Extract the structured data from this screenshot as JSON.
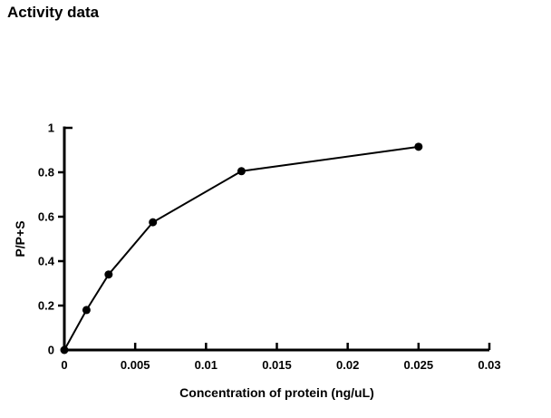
{
  "header": {
    "title": "Activity data"
  },
  "chart_data": {
    "type": "line",
    "title": "Activity data",
    "xlabel": "Concentration of protein (ng/uL)",
    "ylabel": "P/P+S",
    "x": [
      0,
      0.0015625,
      0.003125,
      0.00625,
      0.0125,
      0.025
    ],
    "y": [
      0,
      0.18,
      0.34,
      0.575,
      0.805,
      0.915
    ],
    "xlim": [
      0,
      0.03
    ],
    "ylim": [
      0,
      1
    ],
    "xticks": [
      0,
      0.005,
      0.01,
      0.015,
      0.02,
      0.025,
      0.03
    ],
    "xtick_labels": [
      "0",
      "0.005",
      "0.01",
      "0.015",
      "0.02",
      "0.025",
      "0.03"
    ],
    "yticks": [
      0,
      0.2,
      0.4,
      0.6,
      0.8,
      1
    ],
    "ytick_labels": [
      "0",
      "0.2",
      "0.4",
      "0.6",
      "0.8",
      "1"
    ],
    "grid": false,
    "legend_visible": false,
    "marker": "filled-circle",
    "line_color": "#000000",
    "marker_color": "#000000",
    "axis_color": "#000000",
    "background_color": "#ffffff"
  }
}
